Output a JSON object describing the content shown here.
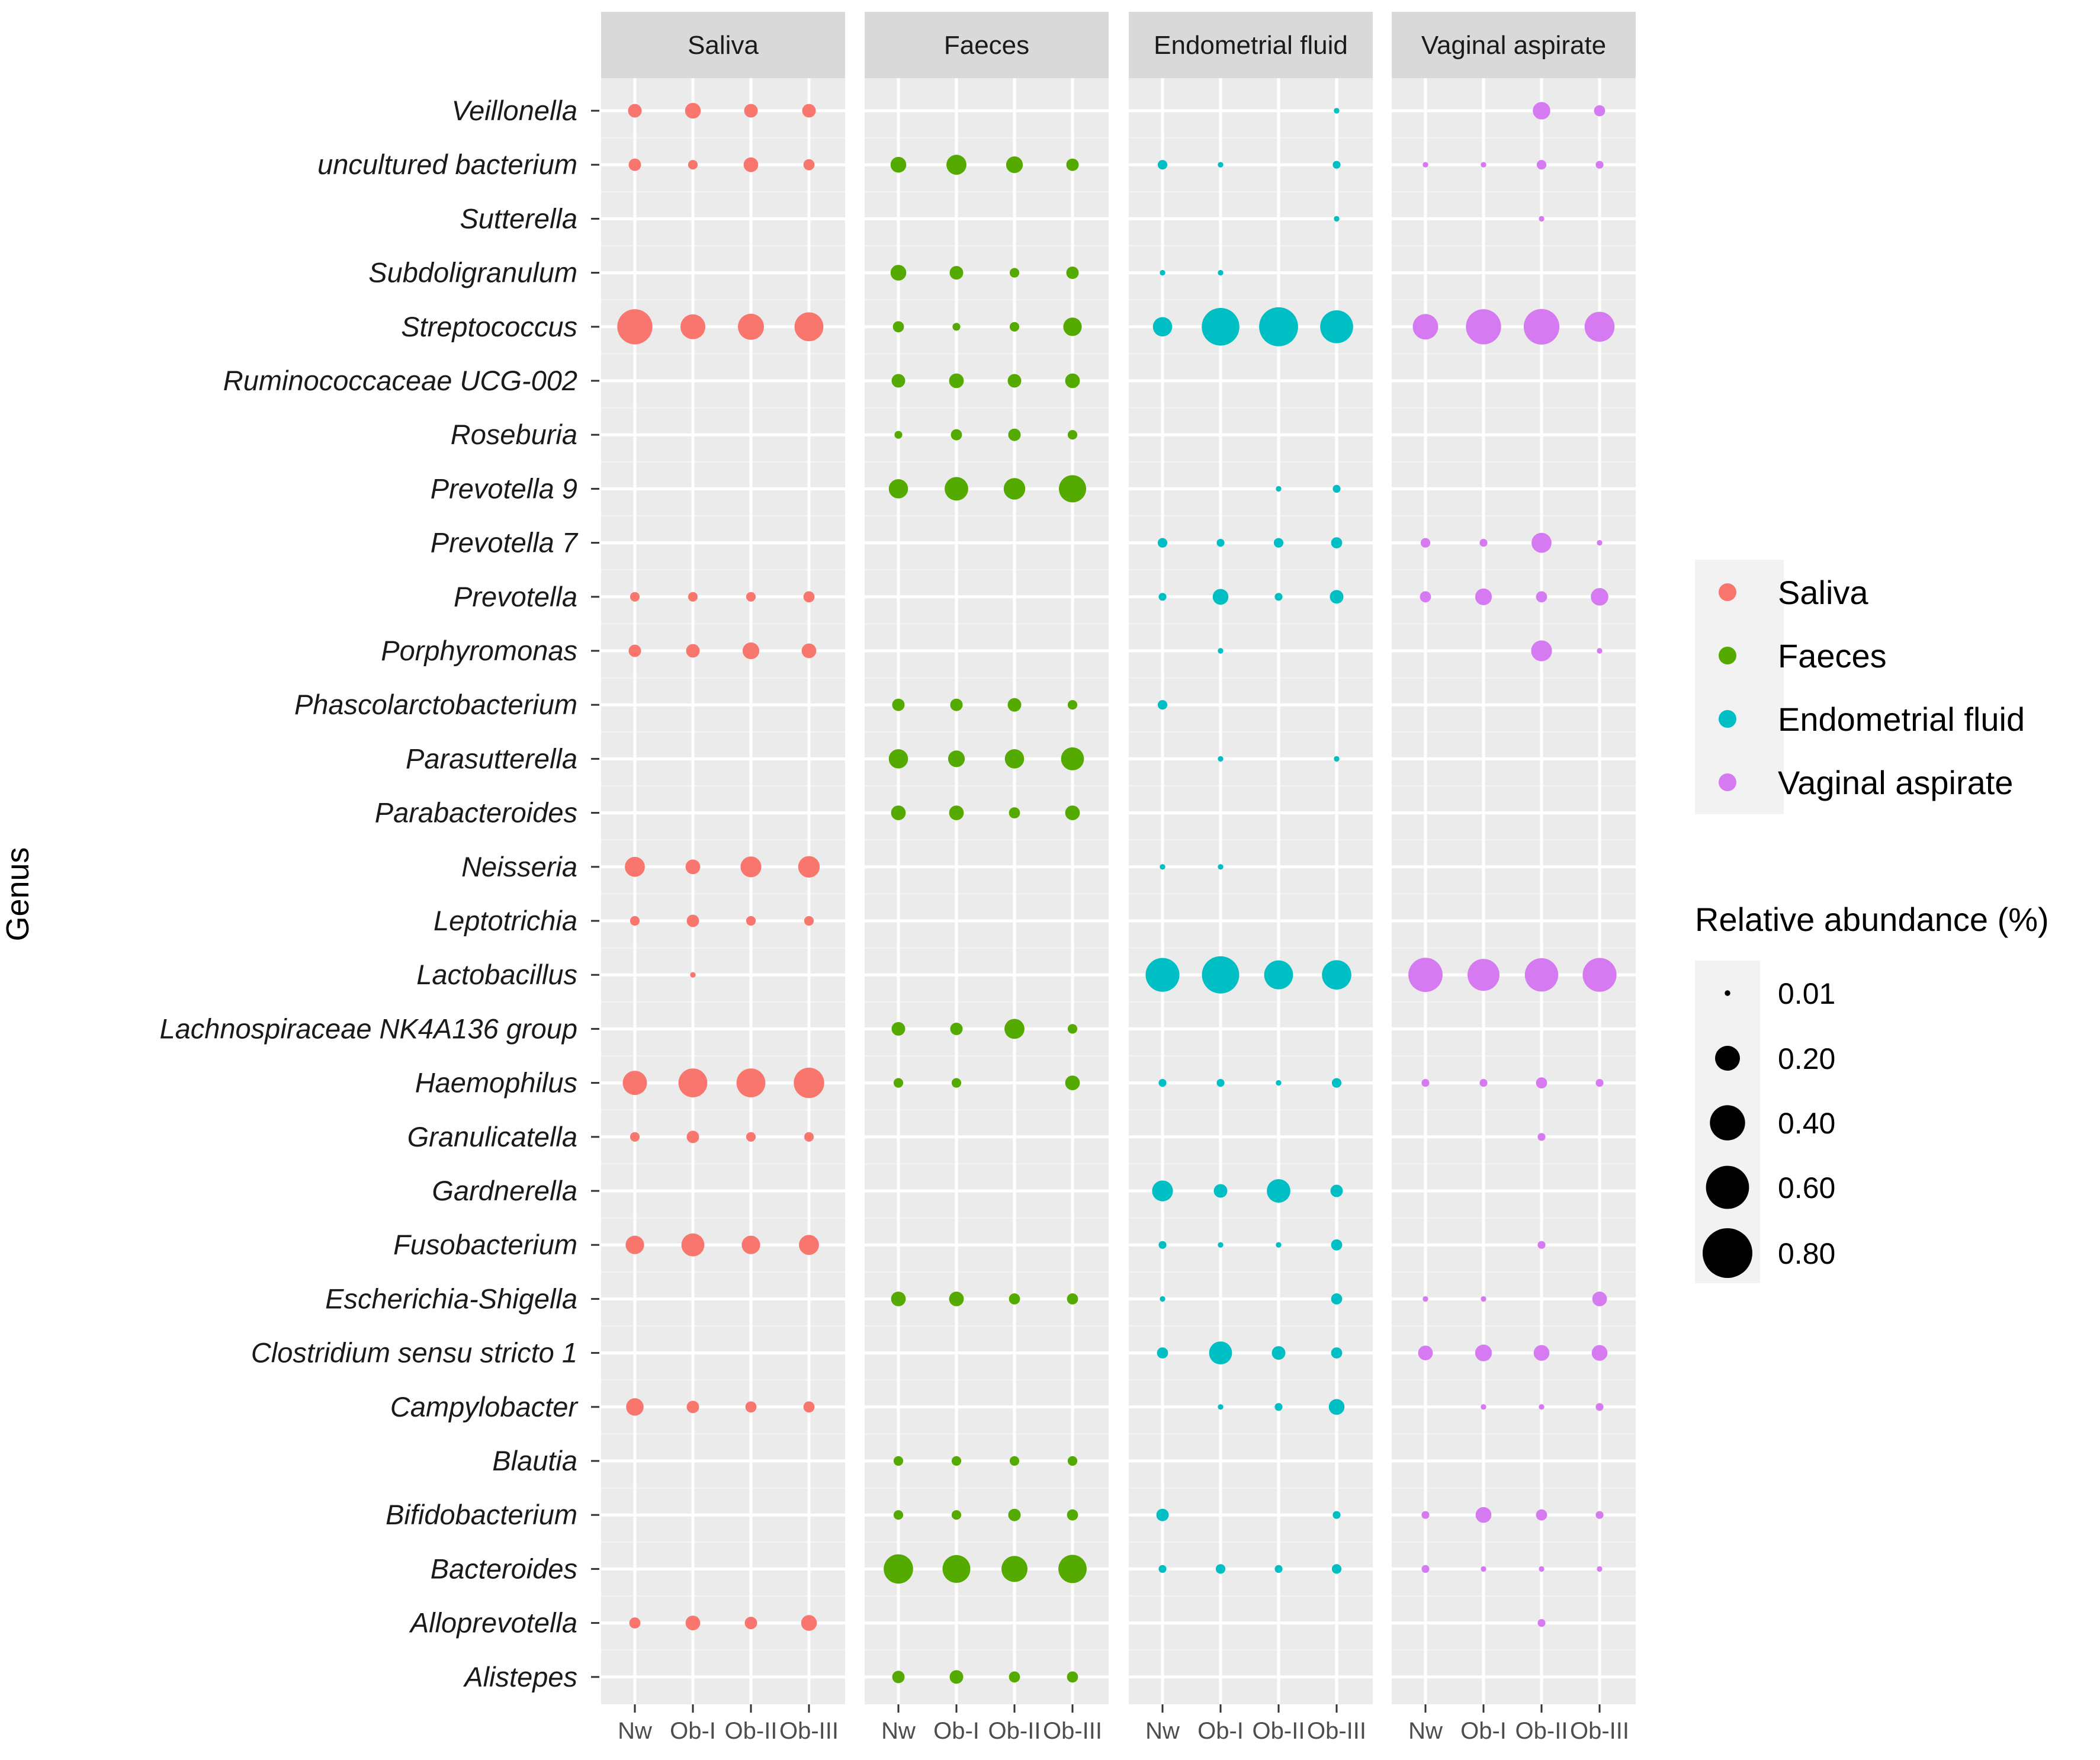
{
  "chart_data": {
    "type": "scatter",
    "ylabel": "Genus",
    "panels": [
      "Saliva",
      "Faeces",
      "Endometrial fluid",
      "Vaginal aspirate"
    ],
    "colors": {
      "Saliva": "#F8766D",
      "Faeces": "#55AA00",
      "Endometrial fluid": "#00BFC4",
      "Vaginal aspirate": "#D57AF0"
    },
    "x_categories": [
      "Nw",
      "Ob-I",
      "Ob-II",
      "Ob-III"
    ],
    "genera": [
      "Veillonella",
      "uncultured bacterium",
      "Sutterella",
      "Subdoligranulum",
      "Streptococcus",
      "Ruminococcaceae UCG-002",
      "Roseburia",
      "Prevotella 9",
      "Prevotella 7",
      "Prevotella",
      "Porphyromonas",
      "Phascolarctobacterium",
      "Parasutterella",
      "Parabacteroides",
      "Neisseria",
      "Leptotrichia",
      "Lactobacillus",
      "Lachnospiraceae NK4A136 group",
      "Haemophilus",
      "Granulicatella",
      "Gardnerella",
      "Fusobacterium",
      "Escherichia-Shigella",
      "Clostridium sensu stricto 1",
      "Campylobacter",
      "Blautia",
      "Bifidobacterium",
      "Bacteroides",
      "Alloprevotella",
      "Alistepes"
    ],
    "size_legend": {
      "title": "Relative abundance (%)",
      "breaks": [
        0.01,
        0.2,
        0.4,
        0.6,
        0.8
      ],
      "labels": [
        "0.01",
        "0.20",
        "0.40",
        "0.60",
        "0.80"
      ]
    },
    "values": {
      "Saliva": [
        [
          0.06,
          0.08,
          0.06,
          0.06
        ],
        [
          0.05,
          0.03,
          0.07,
          0.04
        ],
        [
          null,
          null,
          null,
          null
        ],
        [
          null,
          null,
          null,
          null
        ],
        [
          0.4,
          0.2,
          0.22,
          0.27
        ],
        [
          null,
          null,
          null,
          null
        ],
        [
          null,
          null,
          null,
          null
        ],
        [
          null,
          null,
          null,
          null
        ],
        [
          null,
          null,
          null,
          null
        ],
        [
          0.03,
          0.03,
          0.03,
          0.04
        ],
        [
          0.05,
          0.06,
          0.09,
          0.07
        ],
        [
          null,
          null,
          null,
          null
        ],
        [
          null,
          null,
          null,
          null
        ],
        [
          null,
          null,
          null,
          null
        ],
        [
          0.13,
          0.07,
          0.14,
          0.15
        ],
        [
          0.03,
          0.05,
          0.03,
          0.03
        ],
        [
          null,
          0.01,
          null,
          null
        ],
        [
          null,
          null,
          null,
          null
        ],
        [
          0.19,
          0.27,
          0.27,
          0.3
        ],
        [
          0.03,
          0.05,
          0.03,
          0.03
        ],
        [
          null,
          null,
          null,
          null
        ],
        [
          0.11,
          0.17,
          0.11,
          0.13
        ],
        [
          null,
          null,
          null,
          null
        ],
        [
          null,
          null,
          null,
          null
        ],
        [
          0.1,
          0.05,
          0.04,
          0.04
        ],
        [
          null,
          null,
          null,
          null
        ],
        [
          null,
          null,
          null,
          null
        ],
        [
          null,
          null,
          null,
          null
        ],
        [
          0.04,
          0.07,
          0.05,
          0.08
        ],
        [
          null,
          null,
          null,
          null
        ]
      ],
      "Faeces": [
        [
          null,
          null,
          null,
          null
        ],
        [
          0.08,
          0.13,
          0.09,
          0.05
        ],
        [
          null,
          null,
          null,
          null
        ],
        [
          0.08,
          0.06,
          0.03,
          0.05
        ],
        [
          0.04,
          0.02,
          0.03,
          0.11
        ],
        [
          0.06,
          0.07,
          0.06,
          0.07
        ],
        [
          0.02,
          0.04,
          0.05,
          0.03
        ],
        [
          0.12,
          0.18,
          0.15,
          0.24
        ],
        [
          null,
          null,
          null,
          null
        ],
        [
          null,
          null,
          null,
          null
        ],
        [
          null,
          null,
          null,
          null
        ],
        [
          0.05,
          0.05,
          0.06,
          0.03
        ],
        [
          0.12,
          0.09,
          0.12,
          0.17
        ],
        [
          0.07,
          0.07,
          0.04,
          0.07
        ],
        [
          null,
          null,
          null,
          null
        ],
        [
          null,
          null,
          null,
          null
        ],
        [
          null,
          null,
          null,
          null
        ],
        [
          0.06,
          0.05,
          0.13,
          0.03
        ],
        [
          0.03,
          0.03,
          null,
          0.07
        ],
        [
          null,
          null,
          null,
          null
        ],
        [
          null,
          null,
          null,
          null
        ],
        [
          null,
          null,
          null,
          null
        ],
        [
          0.07,
          0.07,
          0.04,
          0.04
        ],
        [
          null,
          null,
          null,
          null
        ],
        [
          null,
          null,
          null,
          null
        ],
        [
          0.03,
          0.03,
          0.03,
          0.03
        ],
        [
          0.03,
          0.03,
          0.05,
          0.04
        ],
        [
          0.28,
          0.25,
          0.22,
          0.26
        ],
        [
          null,
          null,
          null,
          null
        ],
        [
          0.05,
          0.06,
          0.04,
          0.04
        ]
      ],
      "Endometrial fluid": [
        [
          null,
          null,
          null,
          0.01
        ],
        [
          0.03,
          0.01,
          null,
          0.02
        ],
        [
          null,
          null,
          null,
          0.01
        ],
        [
          0.01,
          0.01,
          null,
          null
        ],
        [
          0.12,
          0.46,
          0.49,
          0.35
        ],
        [
          null,
          null,
          null,
          null
        ],
        [
          null,
          null,
          null,
          null
        ],
        [
          null,
          null,
          0.01,
          0.02
        ],
        [
          0.03,
          0.02,
          0.03,
          0.04
        ],
        [
          0.02,
          0.08,
          0.02,
          0.06
        ],
        [
          null,
          0.01,
          null,
          null
        ],
        [
          0.03,
          null,
          null,
          null
        ],
        [
          null,
          0.01,
          null,
          0.01
        ],
        [
          null,
          null,
          null,
          null
        ],
        [
          0.01,
          0.01,
          null,
          null
        ],
        [
          null,
          null,
          null,
          null
        ],
        [
          0.37,
          0.45,
          0.27,
          0.28
        ],
        [
          null,
          null,
          null,
          null
        ],
        [
          0.02,
          0.02,
          0.01,
          0.03
        ],
        [
          null,
          null,
          null,
          null
        ],
        [
          0.14,
          0.06,
          0.18,
          0.05
        ],
        [
          0.02,
          0.01,
          0.01,
          0.04
        ],
        [
          0.01,
          null,
          null,
          0.04
        ],
        [
          0.04,
          0.17,
          0.06,
          0.04
        ],
        [
          null,
          0.01,
          0.02,
          0.08
        ],
        [
          null,
          null,
          null,
          null
        ],
        [
          0.05,
          null,
          null,
          0.02
        ],
        [
          0.02,
          0.03,
          0.02,
          0.03
        ],
        [
          null,
          null,
          null,
          null
        ],
        [
          null,
          null,
          null,
          null
        ]
      ],
      "Vaginal aspirate": [
        [
          null,
          null,
          0.1,
          0.04
        ],
        [
          0.01,
          0.01,
          0.03,
          0.02
        ],
        [
          null,
          null,
          0.01,
          null
        ],
        [
          null,
          null,
          null,
          null
        ],
        [
          0.21,
          0.4,
          0.41,
          0.29
        ],
        [
          null,
          null,
          null,
          null
        ],
        [
          null,
          null,
          null,
          null
        ],
        [
          null,
          null,
          null,
          null
        ],
        [
          0.03,
          0.02,
          0.13,
          0.01
        ],
        [
          0.04,
          0.09,
          0.04,
          0.1
        ],
        [
          null,
          null,
          0.14,
          0.01
        ],
        [
          null,
          null,
          null,
          null
        ],
        [
          null,
          null,
          null,
          null
        ],
        [
          null,
          null,
          null,
          null
        ],
        [
          null,
          null,
          null,
          null
        ],
        [
          null,
          null,
          null,
          null
        ],
        [
          0.38,
          0.33,
          0.36,
          0.37
        ],
        [
          null,
          null,
          null,
          null
        ],
        [
          0.02,
          0.02,
          0.04,
          0.02
        ],
        [
          null,
          null,
          0.02,
          null
        ],
        [
          null,
          null,
          null,
          null
        ],
        [
          null,
          null,
          0.02,
          null
        ],
        [
          0.01,
          0.01,
          null,
          0.07
        ],
        [
          0.07,
          0.09,
          0.08,
          0.08
        ],
        [
          null,
          0.01,
          0.01,
          0.02
        ],
        [
          null,
          null,
          null,
          null
        ],
        [
          0.02,
          0.08,
          0.04,
          0.02
        ],
        [
          0.02,
          0.01,
          0.01,
          0.01
        ],
        [
          null,
          null,
          0.02,
          null
        ],
        [
          null,
          null,
          null,
          null
        ]
      ]
    }
  }
}
